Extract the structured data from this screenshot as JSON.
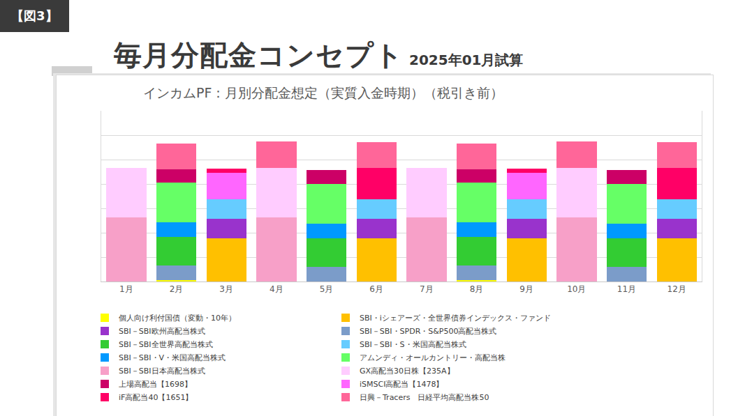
{
  "header": {
    "badge": "【図3】",
    "title": "毎月分配金コンセプト",
    "subtitle": "2025年01月試算"
  },
  "chart_data": {
    "type": "bar",
    "stacked": true,
    "title": "インカムPF：月別分配金想定（実質入金時期）（税引き前）",
    "categories": [
      "1月",
      "2月",
      "3月",
      "4月",
      "5月",
      "6月",
      "7月",
      "8月",
      "9月",
      "10月",
      "11月",
      "12月"
    ],
    "ylim": [
      0,
      7
    ],
    "yticks": [
      0,
      1,
      2,
      3,
      4,
      5,
      6,
      7
    ],
    "grid": true,
    "tick_labels": "x",
    "legend": "bottom",
    "series": [
      {
        "name": "個人向け利付国債（変動・10年）",
        "color": "#ffff00",
        "values": [
          0,
          0.05,
          0,
          0,
          0,
          0,
          0,
          0.05,
          0,
          0,
          0,
          0
        ]
      },
      {
        "name": "SBI・iシェアーズ・全世界債券インデックス・ファンド",
        "color": "#ffc000",
        "values": [
          0,
          0,
          1.76,
          0,
          0,
          1.76,
          0,
          0,
          1.76,
          0,
          0,
          1.76
        ]
      },
      {
        "name": "SBI－SBI欧州高配当株式",
        "color": "#9933cc",
        "values": [
          0,
          0,
          0.81,
          0,
          0,
          0.81,
          0,
          0,
          0.81,
          0,
          0,
          0.81
        ]
      },
      {
        "name": "SBI－SBI・SPDR・S&P500高配当株式",
        "color": "#7b9cc9",
        "values": [
          0,
          0.6,
          0,
          0,
          0.6,
          0,
          0,
          0.6,
          0,
          0,
          0.6,
          0
        ]
      },
      {
        "name": "SBI－SBI全世界高配当株式",
        "color": "#33cc33",
        "values": [
          0,
          1.18,
          0,
          0,
          1.18,
          0,
          0,
          1.18,
          0,
          0,
          1.18,
          0
        ]
      },
      {
        "name": "SBI－SBI・S・米国高配当株式",
        "color": "#66ccff",
        "values": [
          0,
          0,
          0.79,
          0,
          0,
          0.79,
          0,
          0,
          0.79,
          0,
          0,
          0.79
        ]
      },
      {
        "name": "SBI－SBI・V・米国高配当株式",
        "color": "#0099ff",
        "values": [
          0,
          0.6,
          0,
          0,
          0.6,
          0,
          0,
          0.6,
          0,
          0,
          0.6,
          0
        ]
      },
      {
        "name": "アムンディ・オールカントリー・高配当株",
        "color": "#66ff66",
        "values": [
          0,
          1.63,
          0,
          0,
          1.63,
          0,
          0,
          1.63,
          0,
          0,
          1.63,
          0
        ]
      },
      {
        "name": "SBI－SBI日本高配当株式",
        "color": "#f7a0c8",
        "values": [
          2.62,
          0,
          0,
          2.62,
          0,
          0,
          2.62,
          0,
          0,
          2.62,
          0,
          0
        ]
      },
      {
        "name": "GX高配当30日株【235A】",
        "color": "#ffccff",
        "values": [
          2.05,
          0,
          0,
          2.05,
          0,
          0,
          2.05,
          0,
          0,
          2.05,
          0,
          0
        ]
      },
      {
        "name": "上場高配当【1698】",
        "color": "#cc0066",
        "values": [
          0,
          0.55,
          0,
          0,
          0.55,
          0,
          0,
          0.55,
          0,
          0,
          0.55,
          0
        ]
      },
      {
        "name": "iSMSCI高配当【1478】",
        "color": "#ff66ff",
        "values": [
          0,
          0,
          1.1,
          0,
          0,
          0,
          0,
          0,
          1.1,
          0,
          0,
          0
        ]
      },
      {
        "name": "iF高配当40【1651】",
        "color": "#ff0066",
        "values": [
          0,
          0,
          0.16,
          0,
          0,
          1.29,
          0,
          0,
          0.16,
          0,
          0,
          1.29
        ]
      },
      {
        "name": "日興－Tracers　日経平均高配当株50",
        "color": "#ff6699",
        "values": [
          0,
          1.06,
          0,
          1.06,
          0,
          1.06,
          0,
          1.06,
          0,
          1.06,
          0,
          1.06
        ]
      }
    ]
  }
}
